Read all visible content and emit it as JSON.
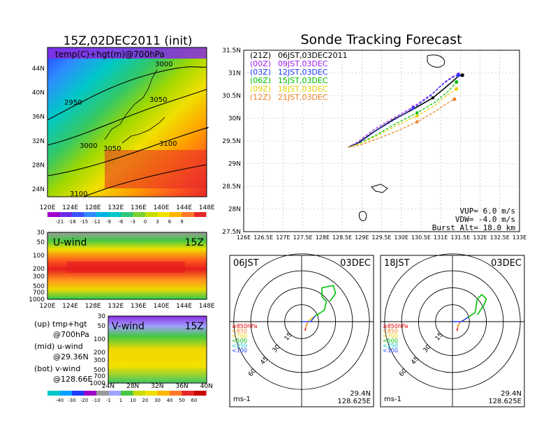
{
  "left_panel": {
    "title": "15Z,02DEC2011 (init)",
    "map_label": "temp(C)+hgt(m)@700hPa",
    "lat_ticks": [
      "44N",
      "40N",
      "36N",
      "32N",
      "28N",
      "24N"
    ],
    "lon_ticks": [
      "120E",
      "124E",
      "128E",
      "132E",
      "136E",
      "140E",
      "144E",
      "148E"
    ],
    "contour_labels": [
      "3000",
      "2950",
      "3050",
      "3000",
      "3050",
      "3100",
      "3100"
    ],
    "temp_colorbar": [
      "-21",
      "-18",
      "-15",
      "-12",
      "-9",
      "-6",
      "-3",
      "0",
      "3",
      "6",
      "9"
    ],
    "u_label": "U-wind",
    "u_time": "15Z",
    "u_levels": [
      "30",
      "50",
      "100",
      "200",
      "300",
      "500",
      "700",
      "1000"
    ],
    "v_label": "V-wind",
    "v_time": "15Z",
    "v_levels": [
      "30",
      "50",
      "100",
      "200",
      "300",
      "500",
      "700",
      "1000"
    ],
    "v_lat_ticks": [
      "24N",
      "28N",
      "32N",
      "36N",
      "40N"
    ],
    "wind_colorbar": [
      "-40",
      "-30",
      "-20",
      "-10",
      "-1",
      "1",
      "10",
      "20",
      "30",
      "40",
      "50",
      "60"
    ],
    "legend": [
      "(up) tmp+hgt",
      "@700hPa",
      "(mid) u-wind",
      "@29.36N",
      "(bot) v-wind",
      "@128.66E"
    ]
  },
  "tracking": {
    "title": "Sonde Tracking Forecast",
    "lat_ticks": [
      "31.5N",
      "31N",
      "30.5N",
      "30N",
      "29.5N",
      "29N",
      "28.5N",
      "28N",
      "27.5N"
    ],
    "lon_ticks": [
      "126E",
      "126.5E",
      "127E",
      "127.5E",
      "128E",
      "128.5E",
      "129E",
      "129.5E",
      "130E",
      "130.5E",
      "131E",
      "131.5E",
      "132E",
      "132.5E",
      "133E"
    ],
    "legend": [
      {
        "utc": "(21Z)",
        "jst": "06JST,03DEC2011",
        "color": "#000000"
      },
      {
        "utc": "(00Z)",
        "jst": "09JST,03DEC",
        "color": "#a020f0"
      },
      {
        "utc": "(03Z)",
        "jst": "12JST,03DEC",
        "color": "#1e3cff"
      },
      {
        "utc": "(06Z)",
        "jst": "15JST,03DEC",
        "color": "#00c000"
      },
      {
        "utc": "(09Z)",
        "jst": "18JST,03DEC",
        "color": "#e6d000"
      },
      {
        "utc": "(12Z)",
        "jst": "21JST,03DEC",
        "color": "#f08228"
      }
    ],
    "params": [
      "VUP= 6.0 m/s",
      "VDW= -4.0 m/s",
      "Burst Alt= 18.0 km"
    ]
  },
  "hodograph_left": {
    "time": "06JST",
    "date": "03DEC",
    "ring_labels": [
      "15",
      "30",
      "45",
      "60"
    ],
    "pressure_legend": [
      {
        "label": "≥850hPa",
        "color": "#e60000"
      },
      {
        "label": "<850",
        "color": "#f08228"
      },
      {
        "label": "<700",
        "color": "#e6d000"
      },
      {
        "label": "<500",
        "color": "#00c000"
      },
      {
        "label": "<250",
        "color": "#00c8c8"
      },
      {
        "label": "<100",
        "color": "#1e3cff"
      }
    ],
    "units": "ms-1",
    "lat": "29.4N",
    "lon": "128.625E"
  },
  "hodograph_right": {
    "time": "18JST",
    "date": "03DEC",
    "ring_labels": [
      "15",
      "30",
      "45",
      "60"
    ],
    "pressure_legend": [
      {
        "label": "≥850hPa",
        "color": "#e60000"
      },
      {
        "label": "<850",
        "color": "#f08228"
      },
      {
        "label": "<700",
        "color": "#e6d000"
      },
      {
        "label": "<500",
        "color": "#00c000"
      },
      {
        "label": "<250",
        "color": "#00c8c8"
      },
      {
        "label": "<100",
        "color": "#1e3cff"
      }
    ],
    "units": "ms-1",
    "lat": "29.4N",
    "lon": "128.625E"
  },
  "chart_data": [
    {
      "type": "line",
      "title": "Sonde Tracking Forecast",
      "xlim": [
        126,
        133
      ],
      "ylim": [
        27.5,
        31.5
      ],
      "grid": true,
      "legend_position": "top-left",
      "series": [
        {
          "name": "(21Z) 06JST,03DEC2011",
          "color": "#000000",
          "x": [
            128.65,
            128.9,
            129.3,
            129.8,
            130.3,
            130.8,
            131.15,
            131.35,
            131.45,
            131.55
          ],
          "y": [
            29.36,
            29.45,
            29.7,
            29.97,
            30.2,
            30.45,
            30.7,
            30.85,
            30.93,
            30.95
          ]
        },
        {
          "name": "(00Z) 09JST,03DEC",
          "color": "#a020f0",
          "x": [
            128.65,
            128.9,
            129.3,
            129.8,
            130.3,
            130.8,
            131.1,
            131.3,
            131.45
          ],
          "y": [
            29.36,
            29.48,
            29.75,
            30.0,
            30.25,
            30.55,
            30.8,
            30.92,
            30.97
          ]
        },
        {
          "name": "(03Z) 12JST,03DEC",
          "color": "#1e3cff",
          "x": [
            128.65,
            128.95,
            129.35,
            129.85,
            130.3,
            130.75,
            131.05,
            131.3,
            131.45
          ],
          "y": [
            29.36,
            29.47,
            29.72,
            29.98,
            30.22,
            30.5,
            30.75,
            30.9,
            30.95
          ]
        },
        {
          "name": "(06Z) 15JST,03DEC",
          "color": "#00c000",
          "x": [
            128.65,
            128.95,
            129.4,
            129.9,
            130.4,
            130.85,
            131.2,
            131.4
          ],
          "y": [
            29.36,
            29.45,
            29.65,
            29.9,
            30.12,
            30.35,
            30.6,
            30.8
          ]
        },
        {
          "name": "(09Z) 18JST,03DEC",
          "color": "#e6d000",
          "x": [
            128.65,
            128.95,
            129.4,
            129.9,
            130.4,
            130.85,
            131.15,
            131.4
          ],
          "y": [
            29.36,
            29.44,
            29.62,
            29.85,
            30.05,
            30.28,
            30.5,
            30.65
          ]
        },
        {
          "name": "(12Z) 21JST,03DEC",
          "color": "#f08228",
          "x": [
            128.65,
            129.0,
            129.4,
            129.9,
            130.4,
            130.8,
            131.15,
            131.35
          ],
          "y": [
            29.36,
            29.42,
            29.55,
            29.72,
            29.92,
            30.12,
            30.32,
            30.42
          ]
        }
      ]
    },
    {
      "type": "line",
      "title": "06JST 03DEC hodograph",
      "units": "ms-1",
      "ring_values": [
        15,
        30,
        45,
        60
      ],
      "series": [
        {
          "name": "≥850hPa",
          "color": "#e60000",
          "u": [
            3,
            3.5
          ],
          "v": [
            -8,
            -6
          ]
        },
        {
          "name": "<850",
          "color": "#f08228",
          "u": [
            3.5,
            4,
            5,
            5
          ],
          "v": [
            -6,
            -3,
            -2,
            0
          ]
        },
        {
          "name": "<700",
          "color": "#e6d000",
          "u": [
            5,
            9,
            12
          ],
          "v": [
            0,
            3,
            5
          ]
        },
        {
          "name": "<500",
          "color": "#00c000",
          "u": [
            12,
            20,
            22,
            18,
            18,
            28,
            30,
            25
          ],
          "v": [
            5,
            10,
            18,
            22,
            30,
            32,
            25,
            18
          ]
        },
        {
          "name": "<100",
          "color": "#1e3cff",
          "u": [
            0,
            8,
            12
          ],
          "v": [
            0,
            0,
            5
          ]
        }
      ]
    },
    {
      "type": "line",
      "title": "18JST 03DEC hodograph",
      "units": "ms-1",
      "ring_values": [
        15,
        30,
        45,
        60
      ],
      "series": [
        {
          "name": "≥850hPa",
          "color": "#e60000",
          "u": [
            4,
            4.5
          ],
          "v": [
            -8,
            -6
          ]
        },
        {
          "name": "<850",
          "color": "#f08228",
          "u": [
            4.5,
            5,
            6,
            7
          ],
          "v": [
            -6,
            -3,
            -2,
            0
          ]
        },
        {
          "name": "<700",
          "color": "#e6d000",
          "u": [
            7,
            11,
            14
          ],
          "v": [
            0,
            2,
            4
          ]
        },
        {
          "name": "<500",
          "color": "#00c000",
          "u": [
            14,
            20,
            22,
            26,
            30,
            28,
            22
          ],
          "v": [
            4,
            8,
            20,
            24,
            20,
            15,
            6
          ]
        },
        {
          "name": "<100",
          "color": "#1e3cff",
          "u": [
            0,
            8,
            14
          ],
          "v": [
            0,
            0,
            4
          ]
        }
      ]
    }
  ]
}
